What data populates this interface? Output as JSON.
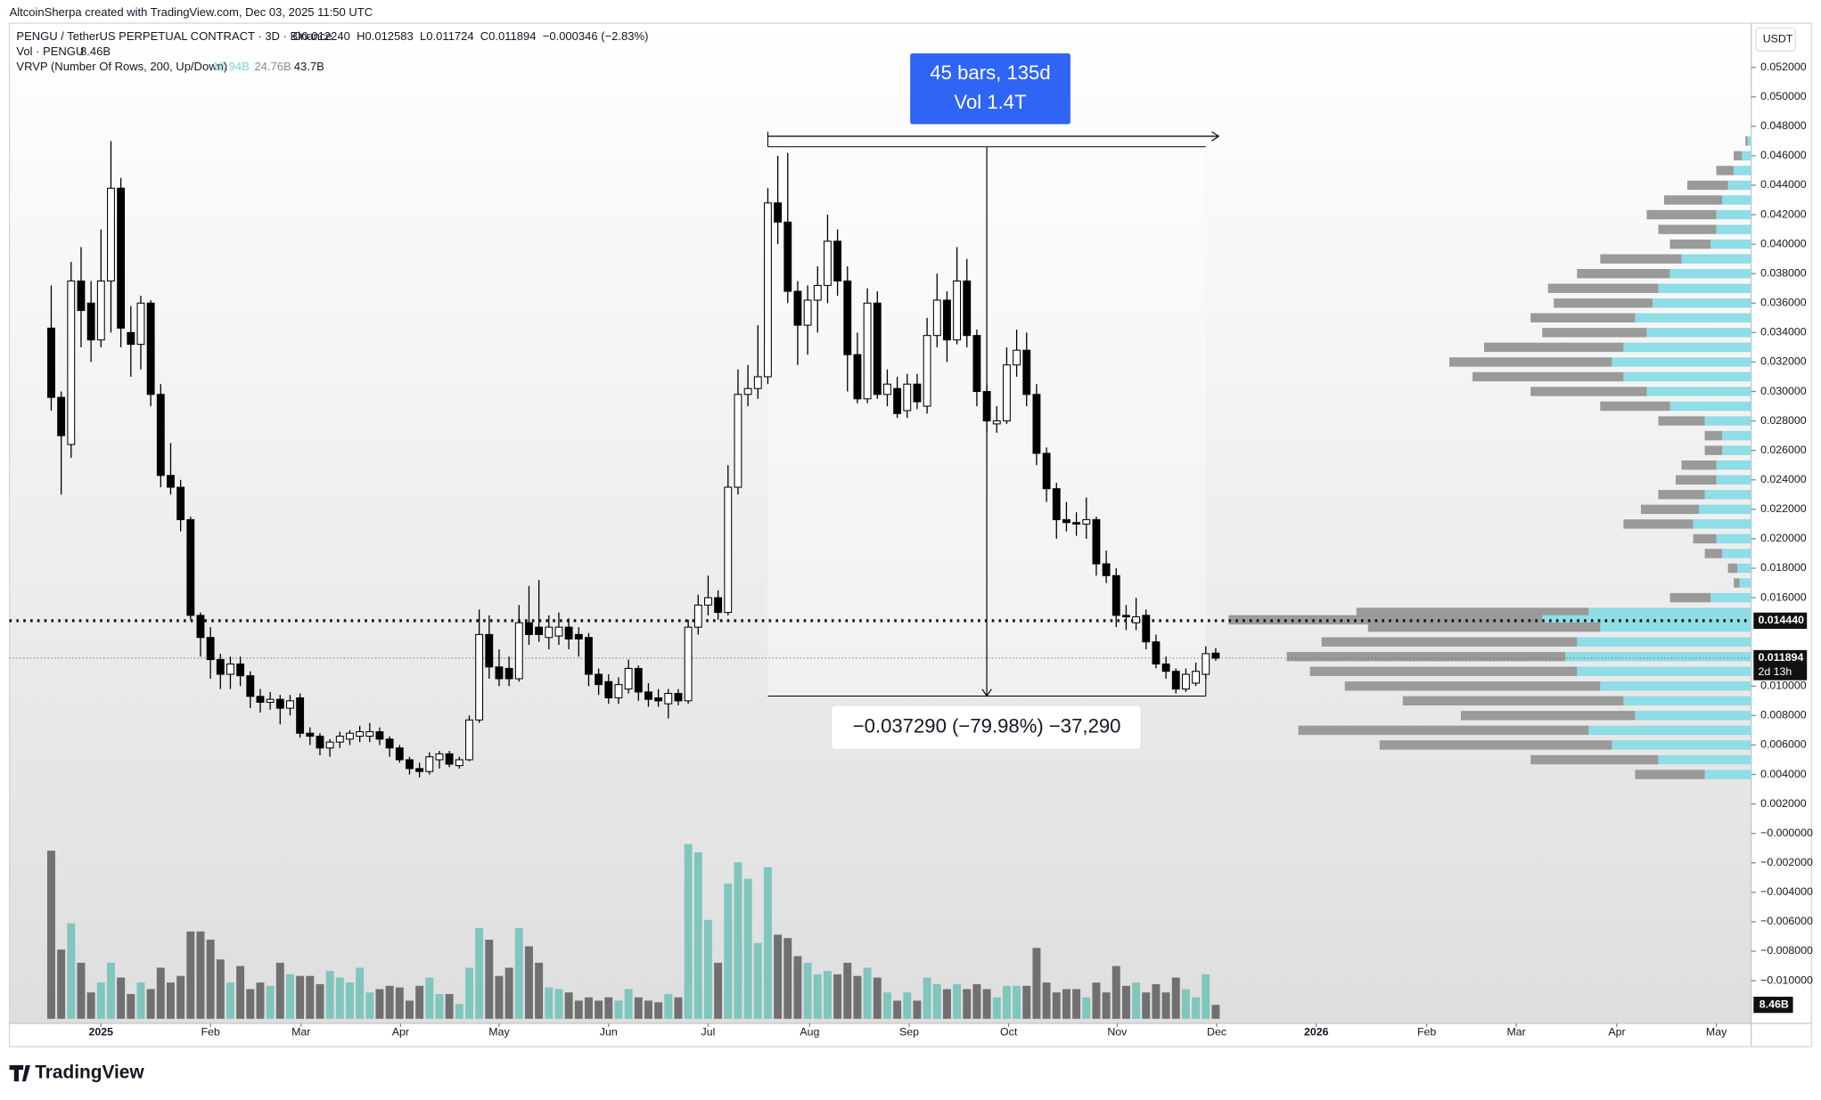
{
  "chart_data": {
    "type": "candlestick",
    "attribution": "AltcoinSherpa created with TradingView.com, Dec 03, 2025 11:50 UTC",
    "symbol": "PENGU / TetherUS PERPETUAL CONTRACT · 3D · Binance",
    "ohlc_text": "O0.012240  H0.012583  L0.011724  C0.011894  −0.000346 (−2.83%)",
    "volume_title": "Vol · PENGU",
    "volume_text": "8.46B",
    "vrvp_title": "VRVP (Number Of Rows, 200, Up/Down)",
    "vrvp_up": "18.94B",
    "vrvp_down": "24.76B",
    "vrvp_total": "43.7B",
    "axis_unit": "USDT",
    "brand": "TradingView",
    "xlim": [
      -4.2,
      170.8
    ],
    "xticks": [
      {
        "value": 5.0,
        "label": "2025"
      },
      {
        "value": 16.0,
        "label": "Feb"
      },
      {
        "value": 25.1,
        "label": "Mar"
      },
      {
        "value": 35.1,
        "label": "Apr"
      },
      {
        "value": 45.0,
        "label": "May"
      },
      {
        "value": 56.0,
        "label": "Jun"
      },
      {
        "value": 66.0,
        "label": "Jul"
      },
      {
        "value": 76.2,
        "label": "Aug"
      },
      {
        "value": 86.2,
        "label": "Sep"
      },
      {
        "value": 96.2,
        "label": "Oct"
      },
      {
        "value": 107.1,
        "label": "Nov"
      },
      {
        "value": 117.1,
        "label": "Dec"
      },
      {
        "value": 127.1,
        "label": "2026"
      },
      {
        "value": 138.2,
        "label": "Feb"
      },
      {
        "value": 147.2,
        "label": "Mar"
      },
      {
        "value": 157.3,
        "label": "Apr"
      },
      {
        "value": 167.3,
        "label": "May"
      }
    ],
    "ylim": [
      -0.0129,
      0.055
    ],
    "yticks": [
      {
        "value": 0.052,
        "label": "0.052000"
      },
      {
        "value": 0.05,
        "label": "0.050000"
      },
      {
        "value": 0.048,
        "label": "0.048000"
      },
      {
        "value": 0.046,
        "label": "0.046000"
      },
      {
        "value": 0.044,
        "label": "0.044000"
      },
      {
        "value": 0.042,
        "label": "0.042000"
      },
      {
        "value": 0.04,
        "label": "0.040000"
      },
      {
        "value": 0.038,
        "label": "0.038000"
      },
      {
        "value": 0.036,
        "label": "0.036000"
      },
      {
        "value": 0.034,
        "label": "0.034000"
      },
      {
        "value": 0.032,
        "label": "0.032000"
      },
      {
        "value": 0.03,
        "label": "0.030000"
      },
      {
        "value": 0.028,
        "label": "0.028000"
      },
      {
        "value": 0.026,
        "label": "0.026000"
      },
      {
        "value": 0.024,
        "label": "0.024000"
      },
      {
        "value": 0.022,
        "label": "0.022000"
      },
      {
        "value": 0.02,
        "label": "0.020000"
      },
      {
        "value": 0.018,
        "label": "0.018000"
      },
      {
        "value": 0.016,
        "label": "0.016000"
      },
      {
        "value": 0.01,
        "label": "0.010000"
      },
      {
        "value": 0.008,
        "label": "0.008000"
      },
      {
        "value": 0.006,
        "label": "0.006000"
      },
      {
        "value": 0.004,
        "label": "0.004000"
      },
      {
        "value": 0.002,
        "label": "0.002000"
      },
      {
        "value": 0,
        "label": "−0.000000"
      },
      {
        "value": -0.002,
        "label": "−0.002000"
      },
      {
        "value": -0.004,
        "label": "−0.004000"
      },
      {
        "value": -0.006,
        "label": "−0.006000"
      },
      {
        "value": -0.008,
        "label": "−0.008000"
      },
      {
        "value": -0.01,
        "label": "−0.010000"
      }
    ],
    "ohlc": [
      [
        0.0343,
        0.0372,
        0.0287,
        0.0296
      ],
      [
        0.0296,
        0.03,
        0.023,
        0.027
      ],
      [
        0.0264,
        0.0388,
        0.0255,
        0.0375
      ],
      [
        0.0375,
        0.0398,
        0.033,
        0.0355
      ],
      [
        0.036,
        0.0375,
        0.032,
        0.0335
      ],
      [
        0.0335,
        0.041,
        0.033,
        0.0375
      ],
      [
        0.0375,
        0.047,
        0.034,
        0.0438
      ],
      [
        0.0438,
        0.0445,
        0.033,
        0.0343
      ],
      [
        0.034,
        0.0358,
        0.031,
        0.0332
      ],
      [
        0.0332,
        0.0365,
        0.0315,
        0.036
      ],
      [
        0.036,
        0.0362,
        0.029,
        0.0298
      ],
      [
        0.0298,
        0.0305,
        0.0235,
        0.0243
      ],
      [
        0.0243,
        0.0265,
        0.023,
        0.0235
      ],
      [
        0.0235,
        0.024,
        0.0205,
        0.0213
      ],
      [
        0.0213,
        0.0215,
        0.0145,
        0.0148
      ],
      [
        0.0148,
        0.015,
        0.012,
        0.0133
      ],
      [
        0.0133,
        0.014,
        0.0105,
        0.0118
      ],
      [
        0.0118,
        0.0122,
        0.0098,
        0.0108
      ],
      [
        0.0108,
        0.012,
        0.0098,
        0.0115
      ],
      [
        0.0115,
        0.012,
        0.01,
        0.0107
      ],
      [
        0.0107,
        0.011,
        0.0085,
        0.0093
      ],
      [
        0.0093,
        0.0098,
        0.0082,
        0.0089
      ],
      [
        0.0089,
        0.0096,
        0.0084,
        0.0091
      ],
      [
        0.0091,
        0.0094,
        0.0074,
        0.0085
      ],
      [
        0.0085,
        0.0094,
        0.008,
        0.009
      ],
      [
        0.0092,
        0.0095,
        0.0065,
        0.0068
      ],
      [
        0.0068,
        0.0072,
        0.006,
        0.0066
      ],
      [
        0.0066,
        0.0068,
        0.0053,
        0.0058
      ],
      [
        0.0058,
        0.0064,
        0.0052,
        0.0062
      ],
      [
        0.0062,
        0.0069,
        0.0058,
        0.0066
      ],
      [
        0.0064,
        0.007,
        0.006,
        0.0068
      ],
      [
        0.0066,
        0.0073,
        0.0062,
        0.0069
      ],
      [
        0.0066,
        0.0075,
        0.0062,
        0.0069
      ],
      [
        0.0069,
        0.0072,
        0.006,
        0.0064
      ],
      [
        0.0064,
        0.0066,
        0.0052,
        0.0058
      ],
      [
        0.0058,
        0.006,
        0.0048,
        0.005
      ],
      [
        0.005,
        0.0052,
        0.004,
        0.0044
      ],
      [
        0.0044,
        0.0048,
        0.0038,
        0.0042
      ],
      [
        0.0042,
        0.0055,
        0.004,
        0.0052
      ],
      [
        0.005,
        0.0056,
        0.0044,
        0.0054
      ],
      [
        0.0054,
        0.0056,
        0.0045,
        0.0047
      ],
      [
        0.0046,
        0.0052,
        0.0044,
        0.005
      ],
      [
        0.005,
        0.008,
        0.0049,
        0.0077
      ],
      [
        0.0077,
        0.0152,
        0.0075,
        0.0135
      ],
      [
        0.0135,
        0.0148,
        0.0105,
        0.0113
      ],
      [
        0.0113,
        0.0125,
        0.01,
        0.0105
      ],
      [
        0.0112,
        0.012,
        0.01,
        0.0105
      ],
      [
        0.0105,
        0.0155,
        0.0103,
        0.0143
      ],
      [
        0.0143,
        0.0168,
        0.0128,
        0.0135
      ],
      [
        0.014,
        0.0172,
        0.013,
        0.0135
      ],
      [
        0.0133,
        0.0148,
        0.0125,
        0.014
      ],
      [
        0.0134,
        0.015,
        0.0128,
        0.014
      ],
      [
        0.014,
        0.0146,
        0.0125,
        0.0132
      ],
      [
        0.0135,
        0.014,
        0.012,
        0.0132
      ],
      [
        0.0133,
        0.0136,
        0.01,
        0.0108
      ],
      [
        0.0108,
        0.0112,
        0.0094,
        0.0101
      ],
      [
        0.0103,
        0.0108,
        0.0088,
        0.0092
      ],
      [
        0.0092,
        0.0106,
        0.0088,
        0.0101
      ],
      [
        0.0098,
        0.0118,
        0.0095,
        0.0112
      ],
      [
        0.0112,
        0.0114,
        0.009,
        0.0096
      ],
      [
        0.0096,
        0.0102,
        0.0086,
        0.0091
      ],
      [
        0.0092,
        0.0098,
        0.0086,
        0.009
      ],
      [
        0.0088,
        0.0098,
        0.0078,
        0.0095
      ],
      [
        0.0095,
        0.0098,
        0.0087,
        0.009
      ],
      [
        0.009,
        0.0145,
        0.0088,
        0.014
      ],
      [
        0.014,
        0.0162,
        0.0135,
        0.0155
      ],
      [
        0.0155,
        0.0175,
        0.0148,
        0.016
      ],
      [
        0.016,
        0.0165,
        0.0145,
        0.015
      ],
      [
        0.015,
        0.025,
        0.0148,
        0.0235
      ],
      [
        0.0235,
        0.0315,
        0.023,
        0.0298
      ],
      [
        0.0298,
        0.0318,
        0.029,
        0.0302
      ],
      [
        0.0302,
        0.0345,
        0.0295,
        0.031
      ],
      [
        0.031,
        0.0438,
        0.0305,
        0.0428
      ],
      [
        0.0428,
        0.046,
        0.04,
        0.0415
      ],
      [
        0.0415,
        0.0462,
        0.036,
        0.0368
      ],
      [
        0.0368,
        0.0375,
        0.0318,
        0.0345
      ],
      [
        0.0345,
        0.0372,
        0.0325,
        0.0362
      ],
      [
        0.0362,
        0.0385,
        0.034,
        0.0372
      ],
      [
        0.0372,
        0.042,
        0.036,
        0.0402
      ],
      [
        0.0402,
        0.041,
        0.0365,
        0.0375
      ],
      [
        0.0375,
        0.0385,
        0.03,
        0.0325
      ],
      [
        0.0325,
        0.034,
        0.0292,
        0.0295
      ],
      [
        0.0295,
        0.037,
        0.0292,
        0.036
      ],
      [
        0.036,
        0.0368,
        0.0295,
        0.0298
      ],
      [
        0.0298,
        0.0315,
        0.029,
        0.0305
      ],
      [
        0.0302,
        0.031,
        0.0282,
        0.0285
      ],
      [
        0.0287,
        0.0312,
        0.0282,
        0.0305
      ],
      [
        0.0305,
        0.0312,
        0.0288,
        0.0293
      ],
      [
        0.029,
        0.035,
        0.0285,
        0.0338
      ],
      [
        0.0338,
        0.038,
        0.033,
        0.0362
      ],
      [
        0.0362,
        0.0368,
        0.032,
        0.0335
      ],
      [
        0.0335,
        0.0398,
        0.0332,
        0.0375
      ],
      [
        0.0375,
        0.039,
        0.033,
        0.0338
      ],
      [
        0.0338,
        0.0342,
        0.029,
        0.03
      ],
      [
        0.03,
        0.0305,
        0.0272,
        0.028
      ],
      [
        0.0278,
        0.029,
        0.0272,
        0.028
      ],
      [
        0.028,
        0.033,
        0.0278,
        0.0318
      ],
      [
        0.0318,
        0.0342,
        0.031,
        0.0328
      ],
      [
        0.0328,
        0.034,
        0.029,
        0.0298
      ],
      [
        0.0298,
        0.0305,
        0.025,
        0.0258
      ],
      [
        0.0258,
        0.0262,
        0.0225,
        0.0234
      ],
      [
        0.0234,
        0.0238,
        0.02,
        0.0213
      ],
      [
        0.0213,
        0.0225,
        0.0205,
        0.0211
      ],
      [
        0.0211,
        0.0218,
        0.0202,
        0.021
      ],
      [
        0.021,
        0.0228,
        0.02,
        0.0213
      ],
      [
        0.0213,
        0.0215,
        0.0175,
        0.0183
      ],
      [
        0.0183,
        0.0192,
        0.017,
        0.0175
      ],
      [
        0.0175,
        0.018,
        0.014,
        0.0148
      ],
      [
        0.0148,
        0.0155,
        0.0138,
        0.0147
      ],
      [
        0.0143,
        0.016,
        0.0138,
        0.0147
      ],
      [
        0.0148,
        0.0152,
        0.0125,
        0.013
      ],
      [
        0.013,
        0.0135,
        0.0112,
        0.0115
      ],
      [
        0.0115,
        0.012,
        0.0105,
        0.011
      ],
      [
        0.011,
        0.0112,
        0.0095,
        0.0098
      ],
      [
        0.0098,
        0.0112,
        0.0096,
        0.0108
      ],
      [
        0.0102,
        0.0116,
        0.01,
        0.011
      ],
      [
        0.0108,
        0.0127,
        0.0105,
        0.0122
      ],
      [
        0.01224,
        0.012583,
        0.011724,
        0.011894
      ]
    ],
    "volume": {
      "up_color": "#7fc6bd",
      "down_color": "#707070",
      "values": [
        102,
        42,
        58,
        34,
        16,
        22,
        34,
        25,
        15,
        22,
        18,
        31,
        22,
        26,
        53,
        53,
        48,
        36,
        22,
        32,
        18,
        22,
        20,
        34,
        27,
        26,
        26,
        21,
        29,
        25,
        22,
        31,
        16,
        18,
        20,
        19,
        11,
        20,
        25,
        15,
        15,
        9,
        31,
        55,
        48,
        26,
        31,
        55,
        44,
        34,
        19,
        18,
        16,
        11,
        13,
        11,
        13,
        11,
        18,
        13,
        11,
        10,
        15,
        13,
        106,
        101,
        60,
        34,
        82,
        95,
        85,
        46,
        92,
        51,
        49,
        38,
        34,
        27,
        29,
        27,
        34,
        26,
        31,
        25,
        16,
        11,
        16,
        11,
        25,
        21,
        18,
        21,
        18,
        21,
        18,
        13,
        20,
        20,
        20,
        43,
        22,
        16,
        18,
        18,
        13,
        22,
        16,
        32,
        20,
        22,
        16,
        21,
        16,
        25,
        18,
        13,
        27,
        8.46
      ],
      "label": "8.46B"
    },
    "profile": {
      "up_color": "#8fdde6",
      "down_color": "#9a9a9a",
      "rows": [
        {
          "price": 0.047,
          "up": 3,
          "down": 2
        },
        {
          "price": 0.046,
          "up": 8,
          "down": 7
        },
        {
          "price": 0.045,
          "up": 15,
          "down": 15
        },
        {
          "price": 0.044,
          "up": 20,
          "down": 35
        },
        {
          "price": 0.043,
          "up": 25,
          "down": 50
        },
        {
          "price": 0.042,
          "up": 30,
          "down": 60
        },
        {
          "price": 0.041,
          "up": 30,
          "down": 50
        },
        {
          "price": 0.04,
          "up": 35,
          "down": 35
        },
        {
          "price": 0.039,
          "up": 60,
          "down": 70
        },
        {
          "price": 0.038,
          "up": 70,
          "down": 80
        },
        {
          "price": 0.037,
          "up": 80,
          "down": 95
        },
        {
          "price": 0.036,
          "up": 85,
          "down": 85
        },
        {
          "price": 0.035,
          "up": 100,
          "down": 90
        },
        {
          "price": 0.034,
          "up": 90,
          "down": 90
        },
        {
          "price": 0.033,
          "up": 110,
          "down": 120
        },
        {
          "price": 0.032,
          "up": 120,
          "down": 140
        },
        {
          "price": 0.031,
          "up": 110,
          "down": 130
        },
        {
          "price": 0.03,
          "up": 90,
          "down": 100
        },
        {
          "price": 0.029,
          "up": 70,
          "down": 60
        },
        {
          "price": 0.028,
          "up": 40,
          "down": 40
        },
        {
          "price": 0.027,
          "up": 25,
          "down": 15
        },
        {
          "price": 0.026,
          "up": 25,
          "down": 15
        },
        {
          "price": 0.025,
          "up": 30,
          "down": 30
        },
        {
          "price": 0.024,
          "up": 30,
          "down": 35
        },
        {
          "price": 0.023,
          "up": 40,
          "down": 40
        },
        {
          "price": 0.022,
          "up": 45,
          "down": 50
        },
        {
          "price": 0.021,
          "up": 50,
          "down": 60
        },
        {
          "price": 0.02,
          "up": 30,
          "down": 20
        },
        {
          "price": 0.019,
          "up": 25,
          "down": 15
        },
        {
          "price": 0.018,
          "up": 12,
          "down": 8
        },
        {
          "price": 0.017,
          "up": 10,
          "down": 5
        },
        {
          "price": 0.016,
          "up": 35,
          "down": 35
        },
        {
          "price": 0.015,
          "up": 140,
          "down": 200
        },
        {
          "price": 0.0145,
          "up": 180,
          "down": 270
        },
        {
          "price": 0.014,
          "up": 130,
          "down": 200
        },
        {
          "price": 0.013,
          "up": 150,
          "down": 220
        },
        {
          "price": 0.012,
          "up": 160,
          "down": 240
        },
        {
          "price": 0.011,
          "up": 150,
          "down": 230
        },
        {
          "price": 0.01,
          "up": 130,
          "down": 220
        },
        {
          "price": 0.009,
          "up": 110,
          "down": 190
        },
        {
          "price": 0.008,
          "up": 100,
          "down": 150
        },
        {
          "price": 0.007,
          "up": 140,
          "down": 250
        },
        {
          "price": 0.006,
          "up": 120,
          "down": 200
        },
        {
          "price": 0.005,
          "up": 80,
          "down": 110
        },
        {
          "price": 0.004,
          "up": 40,
          "down": 60
        }
      ]
    },
    "hline": {
      "value": 0.01444,
      "label": "0.014440"
    },
    "last_label": "0.011894",
    "countdown": "2d 13h",
    "measure": {
      "start_bar": 72,
      "end_bar": 116,
      "high": 0.046614,
      "low": 0.009324,
      "bars_text": "45 bars, 135d",
      "vol_text": "Vol 1.4T",
      "change_text": "−0.037290 (−79.98%) −37,290",
      "color": "#2f64f5"
    }
  }
}
